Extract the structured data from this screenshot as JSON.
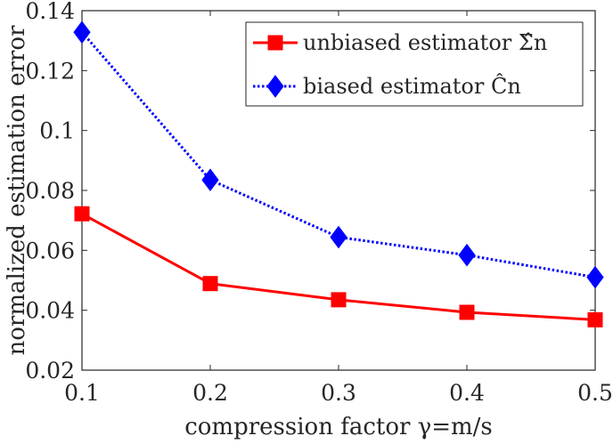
{
  "chart_data": {
    "type": "line",
    "xlabel": "compression factor γ=m/s",
    "ylabel": "normalized estimation error",
    "xlim": [
      0.1,
      0.5
    ],
    "ylim": [
      0.02,
      0.14
    ],
    "xticks": [
      0.1,
      0.2,
      0.3,
      0.4,
      0.5
    ],
    "xtick_labels": [
      "0.1",
      "0.2",
      "0.3",
      "0.4",
      "0.5"
    ],
    "yticks": [
      0.02,
      0.04,
      0.06,
      0.08,
      0.1,
      0.12,
      0.14
    ],
    "ytick_labels": [
      "0.02",
      "0.04",
      "0.06",
      "0.08",
      "0.1",
      "0.12",
      "0.14"
    ],
    "grid": false,
    "legend_position": "top-right",
    "x": [
      0.1,
      0.2,
      0.3,
      0.4,
      0.5
    ],
    "series": [
      {
        "name": "unbiased estimator Σ̂n",
        "values": [
          0.0722,
          0.0489,
          0.0435,
          0.0393,
          0.0368
        ],
        "color": "#ff0000",
        "line_style": "solid",
        "marker": "square"
      },
      {
        "name": "biased estimator Ĉn",
        "values": [
          0.1328,
          0.0835,
          0.0644,
          0.0584,
          0.051
        ],
        "color": "#0000ff",
        "line_style": "dotted",
        "marker": "diamond"
      }
    ]
  }
}
